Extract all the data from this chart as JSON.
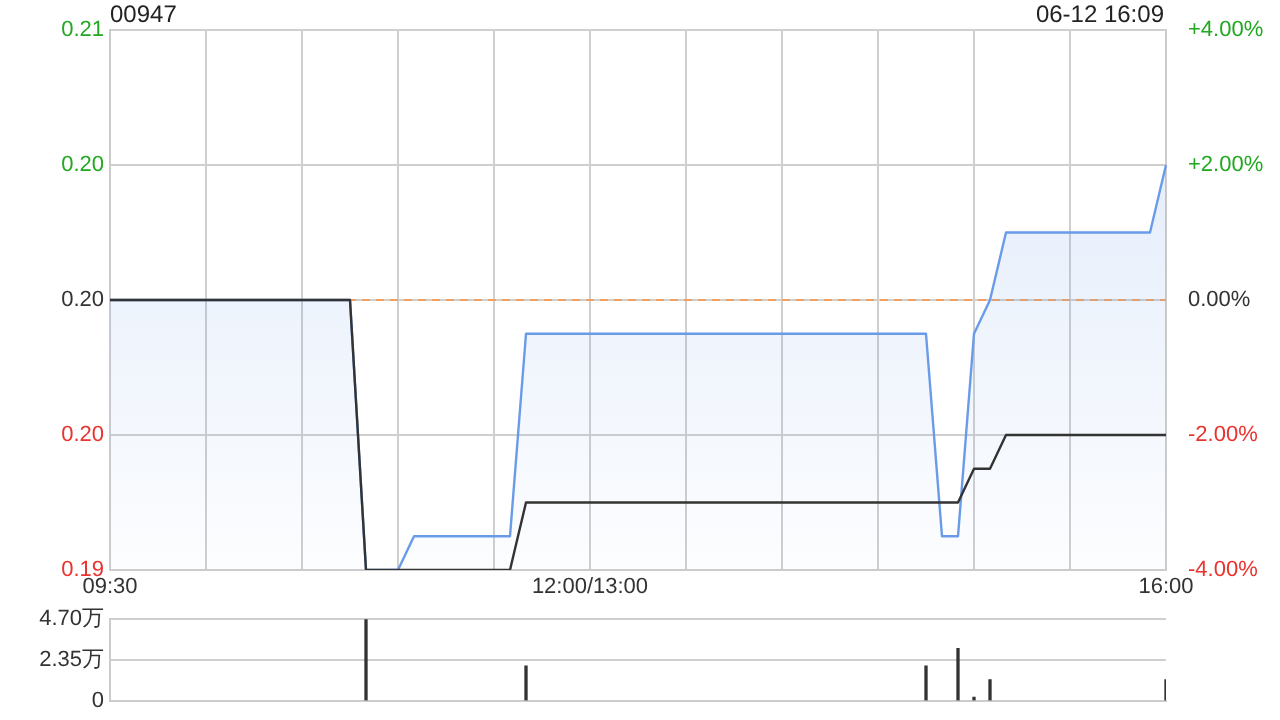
{
  "chart_data": [
    {
      "type": "line",
      "title": "00947",
      "subtitle": "06-12 16:09",
      "categories": [
        "09:30",
        null,
        null,
        null,
        null,
        null,
        null,
        null,
        null,
        null,
        null,
        null,
        null,
        null,
        null,
        null,
        null,
        null,
        null,
        null,
        null,
        null,
        null,
        null,
        null,
        null,
        null,
        null,
        null,
        null,
        "12:00/13:00",
        null,
        null,
        null,
        null,
        null,
        null,
        null,
        null,
        null,
        null,
        null,
        null,
        null,
        null,
        null,
        null,
        null,
        null,
        null,
        null,
        null,
        null,
        null,
        null,
        null,
        null,
        null,
        null,
        null,
        null,
        null,
        null,
        null,
        null,
        null,
        "16:00"
      ],
      "series": [
        {
          "type": "area",
          "color": "#6a9be8",
          "values": [
            0.2,
            0.2,
            0.2,
            0.2,
            0.2,
            0.2,
            0.2,
            0.2,
            0.2,
            0.2,
            0.2,
            0.2,
            0.2,
            0.2,
            0.2,
            0.2,
            0.192,
            0.192,
            0.192,
            0.193,
            0.193,
            0.193,
            0.193,
            0.193,
            0.193,
            0.193,
            0.199,
            0.199,
            0.199,
            0.199,
            0.199,
            0.199,
            0.199,
            0.199,
            0.199,
            0.199,
            0.199,
            0.199,
            0.199,
            0.199,
            0.199,
            0.199,
            0.199,
            0.199,
            0.199,
            0.199,
            0.199,
            0.199,
            0.199,
            0.199,
            0.199,
            0.199,
            0.193,
            0.193,
            0.199,
            0.2,
            0.202,
            0.202,
            0.202,
            0.202,
            0.202,
            0.202,
            0.202,
            0.202,
            0.202,
            0.202,
            0.204
          ]
        },
        {
          "type": "line",
          "color": "#333333",
          "values": [
            0.2,
            0.2,
            0.2,
            0.2,
            0.2,
            0.2,
            0.2,
            0.2,
            0.2,
            0.2,
            0.2,
            0.2,
            0.2,
            0.2,
            0.2,
            0.2,
            0.192,
            0.192,
            0.192,
            0.192,
            0.192,
            0.192,
            0.192,
            0.192,
            0.192,
            0.192,
            0.194,
            0.194,
            0.194,
            0.194,
            0.194,
            0.194,
            0.194,
            0.194,
            0.194,
            0.194,
            0.194,
            0.194,
            0.194,
            0.194,
            0.194,
            0.194,
            0.194,
            0.194,
            0.194,
            0.194,
            0.194,
            0.194,
            0.194,
            0.194,
            0.194,
            0.194,
            0.194,
            0.194,
            0.195,
            0.195,
            0.196,
            0.196,
            0.196,
            0.196,
            0.196,
            0.196,
            0.196,
            0.196,
            0.196,
            0.196,
            0.196
          ]
        }
      ],
      "ylim": [
        0.192,
        0.208
      ],
      "yticks": [
        {
          "value": 0.192,
          "label": "0.19"
        },
        {
          "value": 0.196,
          "label": "0.20"
        },
        {
          "value": 0.2,
          "label": "0.20"
        },
        {
          "value": 0.204,
          "label": "0.20"
        },
        {
          "value": 0.208,
          "label": "0.21"
        }
      ],
      "y2lim": [
        -4,
        4
      ],
      "y2ticks": [
        {
          "value": -4,
          "label": "-4.00%"
        },
        {
          "value": -2,
          "label": "-2.00%"
        },
        {
          "value": 0,
          "label": "0.00%"
        },
        {
          "value": 2,
          "label": "+2.00%"
        },
        {
          "value": 4,
          "label": "+4.00%"
        }
      ],
      "ref_lines": [
        {
          "axis": "y",
          "value": 0.2,
          "color": "#f0a060",
          "line_style": "dashed"
        }
      ],
      "grid": true,
      "marker": "none"
    },
    {
      "type": "bar",
      "color": "#333333",
      "categories": [
        null,
        null,
        null,
        null,
        null,
        null,
        null,
        null,
        null,
        null,
        null,
        null,
        null,
        null,
        null,
        null,
        null,
        null,
        null,
        null,
        null,
        null,
        null,
        null,
        null,
        null,
        null,
        null,
        null,
        null,
        null,
        null,
        null,
        null,
        null,
        null,
        null,
        null,
        null,
        null,
        null,
        null,
        null,
        null,
        null,
        null,
        null,
        null,
        null,
        null,
        null,
        null,
        null,
        null,
        null,
        null,
        null,
        null,
        null,
        null,
        null,
        null,
        null,
        null,
        null,
        null,
        null
      ],
      "values": [
        null,
        null,
        null,
        null,
        null,
        null,
        null,
        null,
        null,
        null,
        null,
        null,
        null,
        null,
        null,
        null,
        4.7,
        null,
        null,
        null,
        null,
        null,
        null,
        null,
        null,
        null,
        2.0,
        null,
        null,
        null,
        null,
        null,
        null,
        null,
        null,
        null,
        null,
        null,
        null,
        null,
        null,
        null,
        null,
        null,
        null,
        null,
        null,
        null,
        null,
        null,
        null,
        2.0,
        null,
        3.0,
        0.2,
        1.2,
        null,
        null,
        null,
        null,
        null,
        null,
        null,
        null,
        null,
        null,
        1.2
      ],
      "ylim": [
        0,
        4.7
      ],
      "yticks": [
        0,
        {
          "value": 2.35,
          "label": "2.35万"
        },
        {
          "value": 4.7,
          "label": "4.70万"
        }
      ],
      "tick_labels": "y",
      "grid": "y"
    }
  ]
}
